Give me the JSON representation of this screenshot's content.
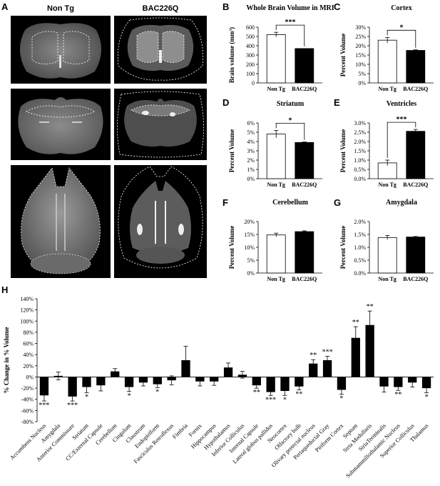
{
  "panel_labels": [
    "A",
    "B",
    "C",
    "D",
    "E",
    "F",
    "G",
    "H"
  ],
  "columns": [
    "Non Tg",
    "BAC226Q"
  ],
  "small_charts": [
    {
      "letter": "B",
      "title": "Whole Brain Volume in MRI",
      "ylabel": "Brain volume (mm³)",
      "ylim": [
        0,
        600
      ],
      "ticks": [
        "0",
        "100",
        "200",
        "300",
        "400",
        "500",
        "600"
      ],
      "categories": [
        "Non Tg",
        "BAC226Q"
      ],
      "values": [
        520,
        370
      ],
      "errors": [
        25,
        0
      ],
      "significance": "***"
    },
    {
      "letter": "C",
      "title": "Cortex",
      "ylabel": "Percent Volume",
      "ylim": [
        0,
        30
      ],
      "ticks": [
        "0%",
        "5%",
        "10%",
        "15%",
        "20%",
        "25%",
        "30%"
      ],
      "categories": [
        "Non Tg",
        "BAC226Q"
      ],
      "values": [
        23,
        17.5
      ],
      "errors": [
        1.5,
        0.3
      ],
      "significance": "*"
    },
    {
      "letter": "D",
      "title": "Striatum",
      "ylabel": "Percent Volume",
      "ylim": [
        0,
        6
      ],
      "ticks": [
        "0%",
        "1%",
        "2%",
        "3%",
        "4%",
        "5%",
        "6%"
      ],
      "categories": [
        "Non Tg",
        "BAC226Q"
      ],
      "values": [
        4.8,
        3.9
      ],
      "errors": [
        0.4,
        0.05
      ],
      "significance": "*"
    },
    {
      "letter": "E",
      "title": "Ventricles",
      "ylabel": "Percent Volume",
      "ylim": [
        0,
        3
      ],
      "ticks": [
        "0.0%",
        "0.5%",
        "1.0%",
        "1.5%",
        "2.0%",
        "2.5%",
        "3.0%"
      ],
      "categories": [
        "Non Tg",
        "BAC226Q"
      ],
      "values": [
        0.85,
        2.55
      ],
      "errors": [
        0.15,
        0.1
      ],
      "significance": "***"
    },
    {
      "letter": "F",
      "title": "Cerebellum",
      "ylabel": "Percent Volume",
      "ylim": [
        0,
        20
      ],
      "ticks": [
        "0%",
        "5%",
        "10%",
        "15%",
        "20%"
      ],
      "categories": [
        "Non Tg",
        "BAC226Q"
      ],
      "values": [
        14.8,
        16.1
      ],
      "errors": [
        0.7,
        0.3
      ],
      "significance": ""
    },
    {
      "letter": "G",
      "title": "Amygdala",
      "ylabel": "Percent Volume",
      "ylim": [
        0,
        2
      ],
      "ticks": [
        "0.0%",
        "0.5%",
        "1.0%",
        "1.5%",
        "2.0%"
      ],
      "categories": [
        "Non Tg",
        "BAC226Q"
      ],
      "values": [
        1.38,
        1.4
      ],
      "errors": [
        0.08,
        0.02
      ],
      "significance": ""
    }
  ],
  "chart_data": {
    "type": "bar",
    "ylabel": "% Change in % Volume",
    "ylim": [
      -80,
      140
    ],
    "ticks": [
      "-80%",
      "-60%",
      "-40%",
      "-20%",
      "0%",
      "20%",
      "40%",
      "60%",
      "80%",
      "100%",
      "120%",
      "140%"
    ],
    "categories": [
      "Accumbens Nucleus",
      "Amygdala",
      "Anterior Commissure",
      "Striatum",
      "CC/External Capsule",
      "Cerebellum",
      "Cingulum",
      "Claustrum",
      "Endopiriform",
      "Fasciculus Retroflexus",
      "Fimbria",
      "Fornix",
      "Hippocampus",
      "Hypothalamus",
      "Inferior Colliculus",
      "Internal Capsule",
      "Lateral globus pallidus",
      "Neocortex",
      "Olfactory bulb",
      "Olivary pretectal nucleus",
      "Periaqueductal Gray",
      "Piriform Cortex",
      "Septum",
      "Stria Medullaris",
      "StriaTerminalis",
      "Submammillothalamic Nucleus",
      "Superior Colliculus",
      "Thalamus"
    ],
    "values": [
      -33,
      2,
      -35,
      -18,
      -15,
      10,
      -18,
      -10,
      -13,
      -6,
      30,
      -8,
      -8,
      17,
      4,
      -15,
      -27,
      -25,
      -17,
      24,
      30,
      -23,
      70,
      93,
      -17,
      -18,
      -10,
      -20
    ],
    "errors": [
      10,
      7,
      8,
      10,
      10,
      5,
      8,
      6,
      6,
      8,
      25,
      8,
      7,
      8,
      6,
      5,
      6,
      8,
      6,
      7,
      7,
      8,
      20,
      25,
      10,
      6,
      8,
      8
    ],
    "significance": [
      "***",
      "",
      "***",
      "*",
      "",
      "",
      "*",
      "",
      "*",
      "",
      "",
      "",
      "",
      "",
      "",
      "**",
      "***",
      "*",
      "**",
      "**",
      "***",
      "*",
      "**",
      "**",
      "",
      "**",
      "",
      "*"
    ]
  }
}
